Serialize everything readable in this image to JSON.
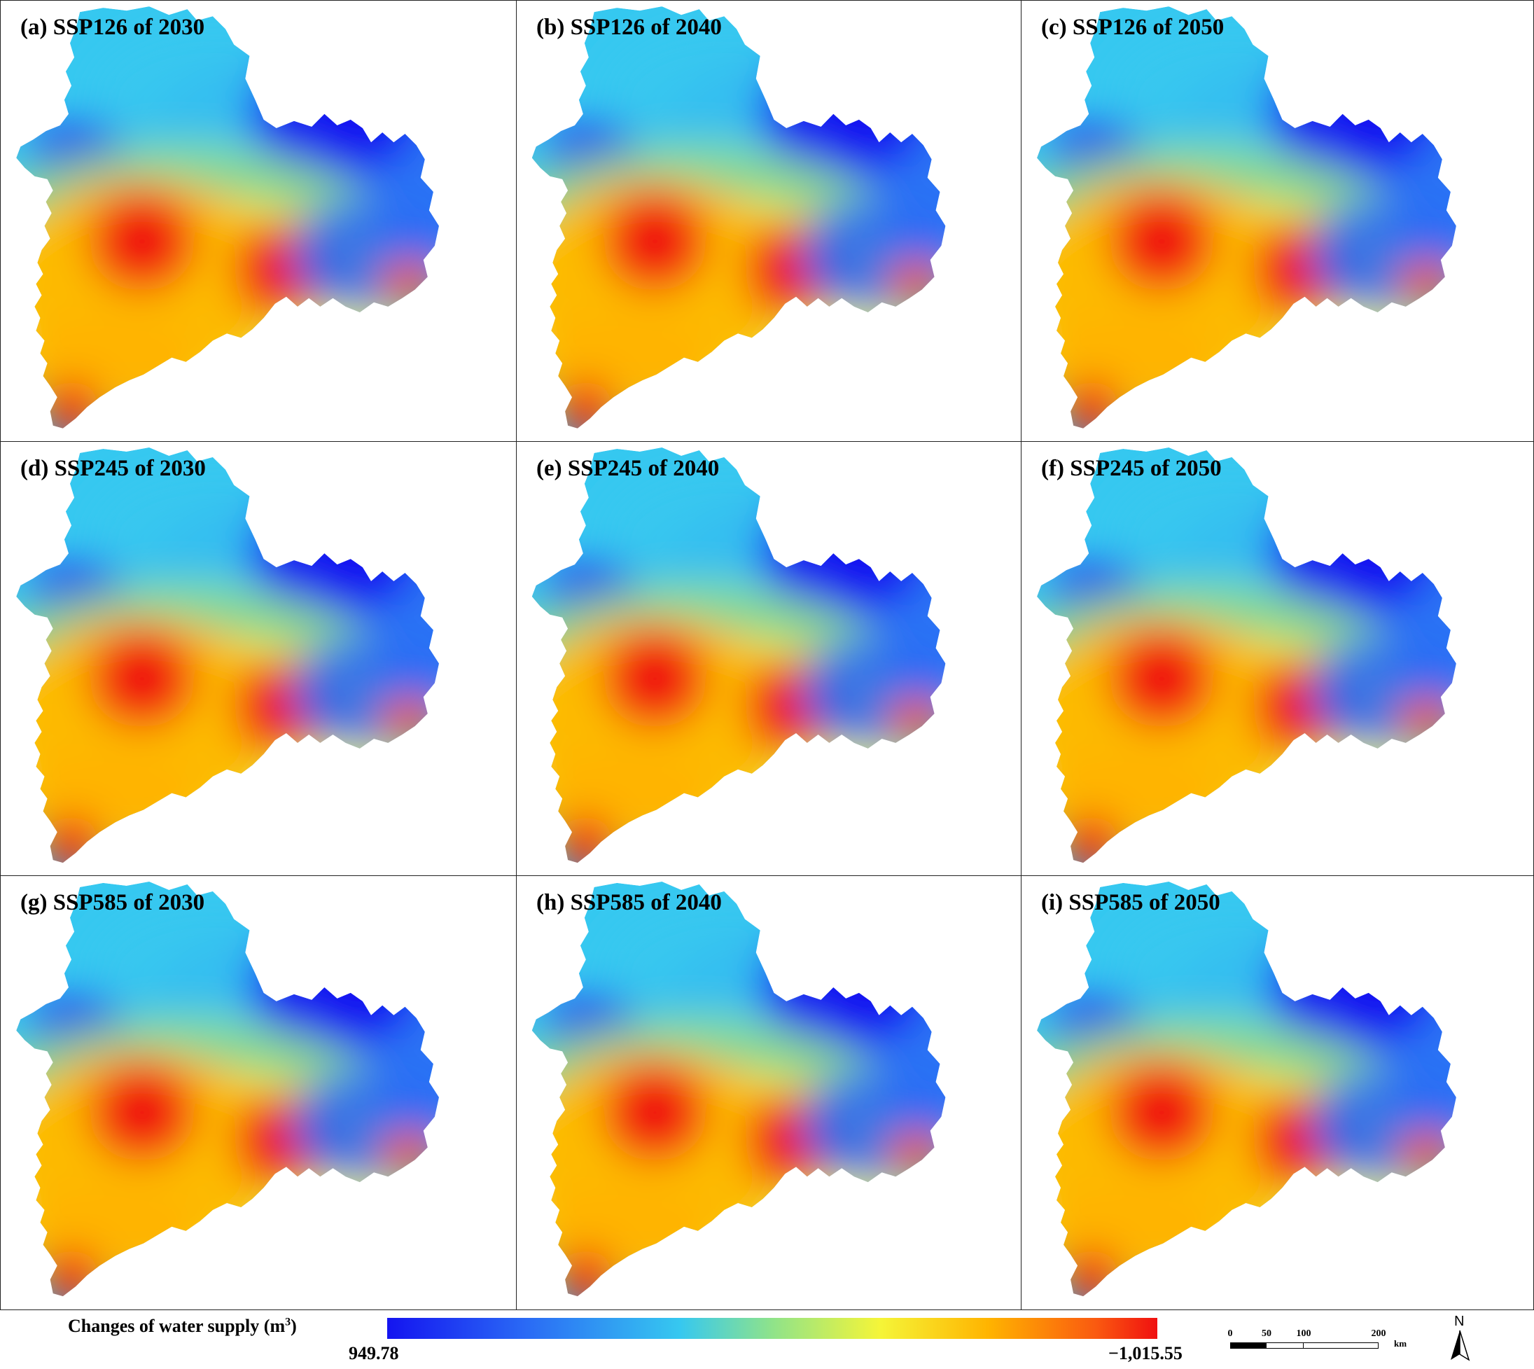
{
  "panels": [
    {
      "label": "(a) SSP126 of 2030"
    },
    {
      "label": "(b) SSP126 of 2040"
    },
    {
      "label": "(c) SSP126 of 2050"
    },
    {
      "label": "(d) SSP245 of 2030"
    },
    {
      "label": "(e) SSP245 of 2040"
    },
    {
      "label": "(f) SSP245 of 2050"
    },
    {
      "label": "(g) SSP585 of 2030"
    },
    {
      "label": "(h) SSP585 of 2040"
    },
    {
      "label": "(i) SSP585 of 2050"
    }
  ],
  "legend": {
    "title": "Changes of water supply (m",
    "unit_sup": "3",
    "title_end": ")",
    "min_label": "949.78",
    "max_label": "−1,015.55",
    "colors": [
      "#1414f0",
      "#2a6af5",
      "#36c8f0",
      "#8fe38a",
      "#f5f538",
      "#ffb400",
      "#fa5a10",
      "#f01010"
    ]
  },
  "scale_bar": {
    "ticks": [
      "0",
      "50",
      "100",
      "200"
    ],
    "unit": "km"
  },
  "north_arrow": {
    "label": "N"
  }
}
